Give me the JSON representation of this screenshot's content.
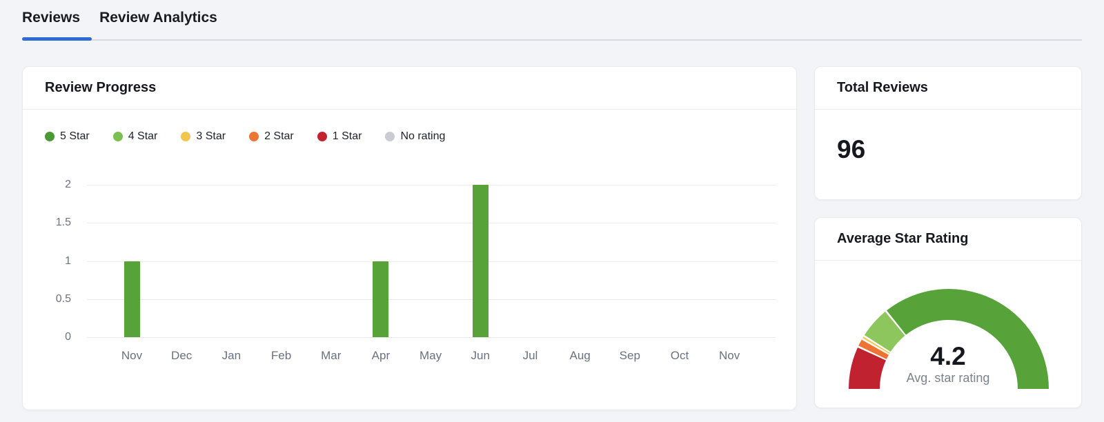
{
  "page": {
    "background": "#f2f4f7"
  },
  "tabs": {
    "items": [
      {
        "label": "Reviews",
        "active": true
      },
      {
        "label": "Review Analytics",
        "active": false
      }
    ],
    "underline_color": "#2e6cd3"
  },
  "review_progress": {
    "title": "Review Progress",
    "legend": [
      {
        "label": "5 Star",
        "color": "#4c9a35"
      },
      {
        "label": "4 Star",
        "color": "#7cc14f"
      },
      {
        "label": "3 Star",
        "color": "#f0c64f"
      },
      {
        "label": "2 Star",
        "color": "#ee7434"
      },
      {
        "label": "1 Star",
        "color": "#c1222f"
      },
      {
        "label": "No rating",
        "color": "#c9ccd2"
      }
    ]
  },
  "total_reviews": {
    "title": "Total Reviews",
    "value": "96"
  },
  "average_star_rating": {
    "title": "Average Star Rating",
    "value": "4.2",
    "caption": "Avg. star rating"
  },
  "chart_data": [
    {
      "type": "bar",
      "title": "Review Progress",
      "categories": [
        "Nov",
        "Dec",
        "Jan",
        "Feb",
        "Mar",
        "Apr",
        "May",
        "Jun",
        "Jul",
        "Aug",
        "Sep",
        "Oct",
        "Nov"
      ],
      "series": [
        {
          "name": "5 Star",
          "color": "#57a33a",
          "values": [
            1,
            0,
            0,
            0,
            0,
            1,
            0,
            2,
            0,
            0,
            0,
            0,
            0
          ]
        }
      ],
      "ylim": [
        0,
        2
      ],
      "yticks": [
        0,
        0.5,
        1,
        1.5,
        2
      ],
      "grid": true,
      "legend_position": "top",
      "legend_entries": [
        "5 Star",
        "4 Star",
        "3 Star",
        "2 Star",
        "1 Star",
        "No rating"
      ]
    },
    {
      "type": "gauge",
      "title": "Average Star Rating",
      "value": 4.2,
      "caption": "Avg. star rating",
      "segments": [
        {
          "name": "1 Star",
          "color": "#c1222f",
          "fraction": 0.139
        },
        {
          "name": "2 Star",
          "color": "#ee7434",
          "fraction": 0.028
        },
        {
          "name": "3 Star",
          "color": "#f0c64f",
          "fraction": 0.011
        },
        {
          "name": "4 Star",
          "color": "#8dc65c",
          "fraction": 0.106
        },
        {
          "name": "5 Star",
          "color": "#57a33a",
          "fraction": 0.716
        }
      ]
    }
  ]
}
